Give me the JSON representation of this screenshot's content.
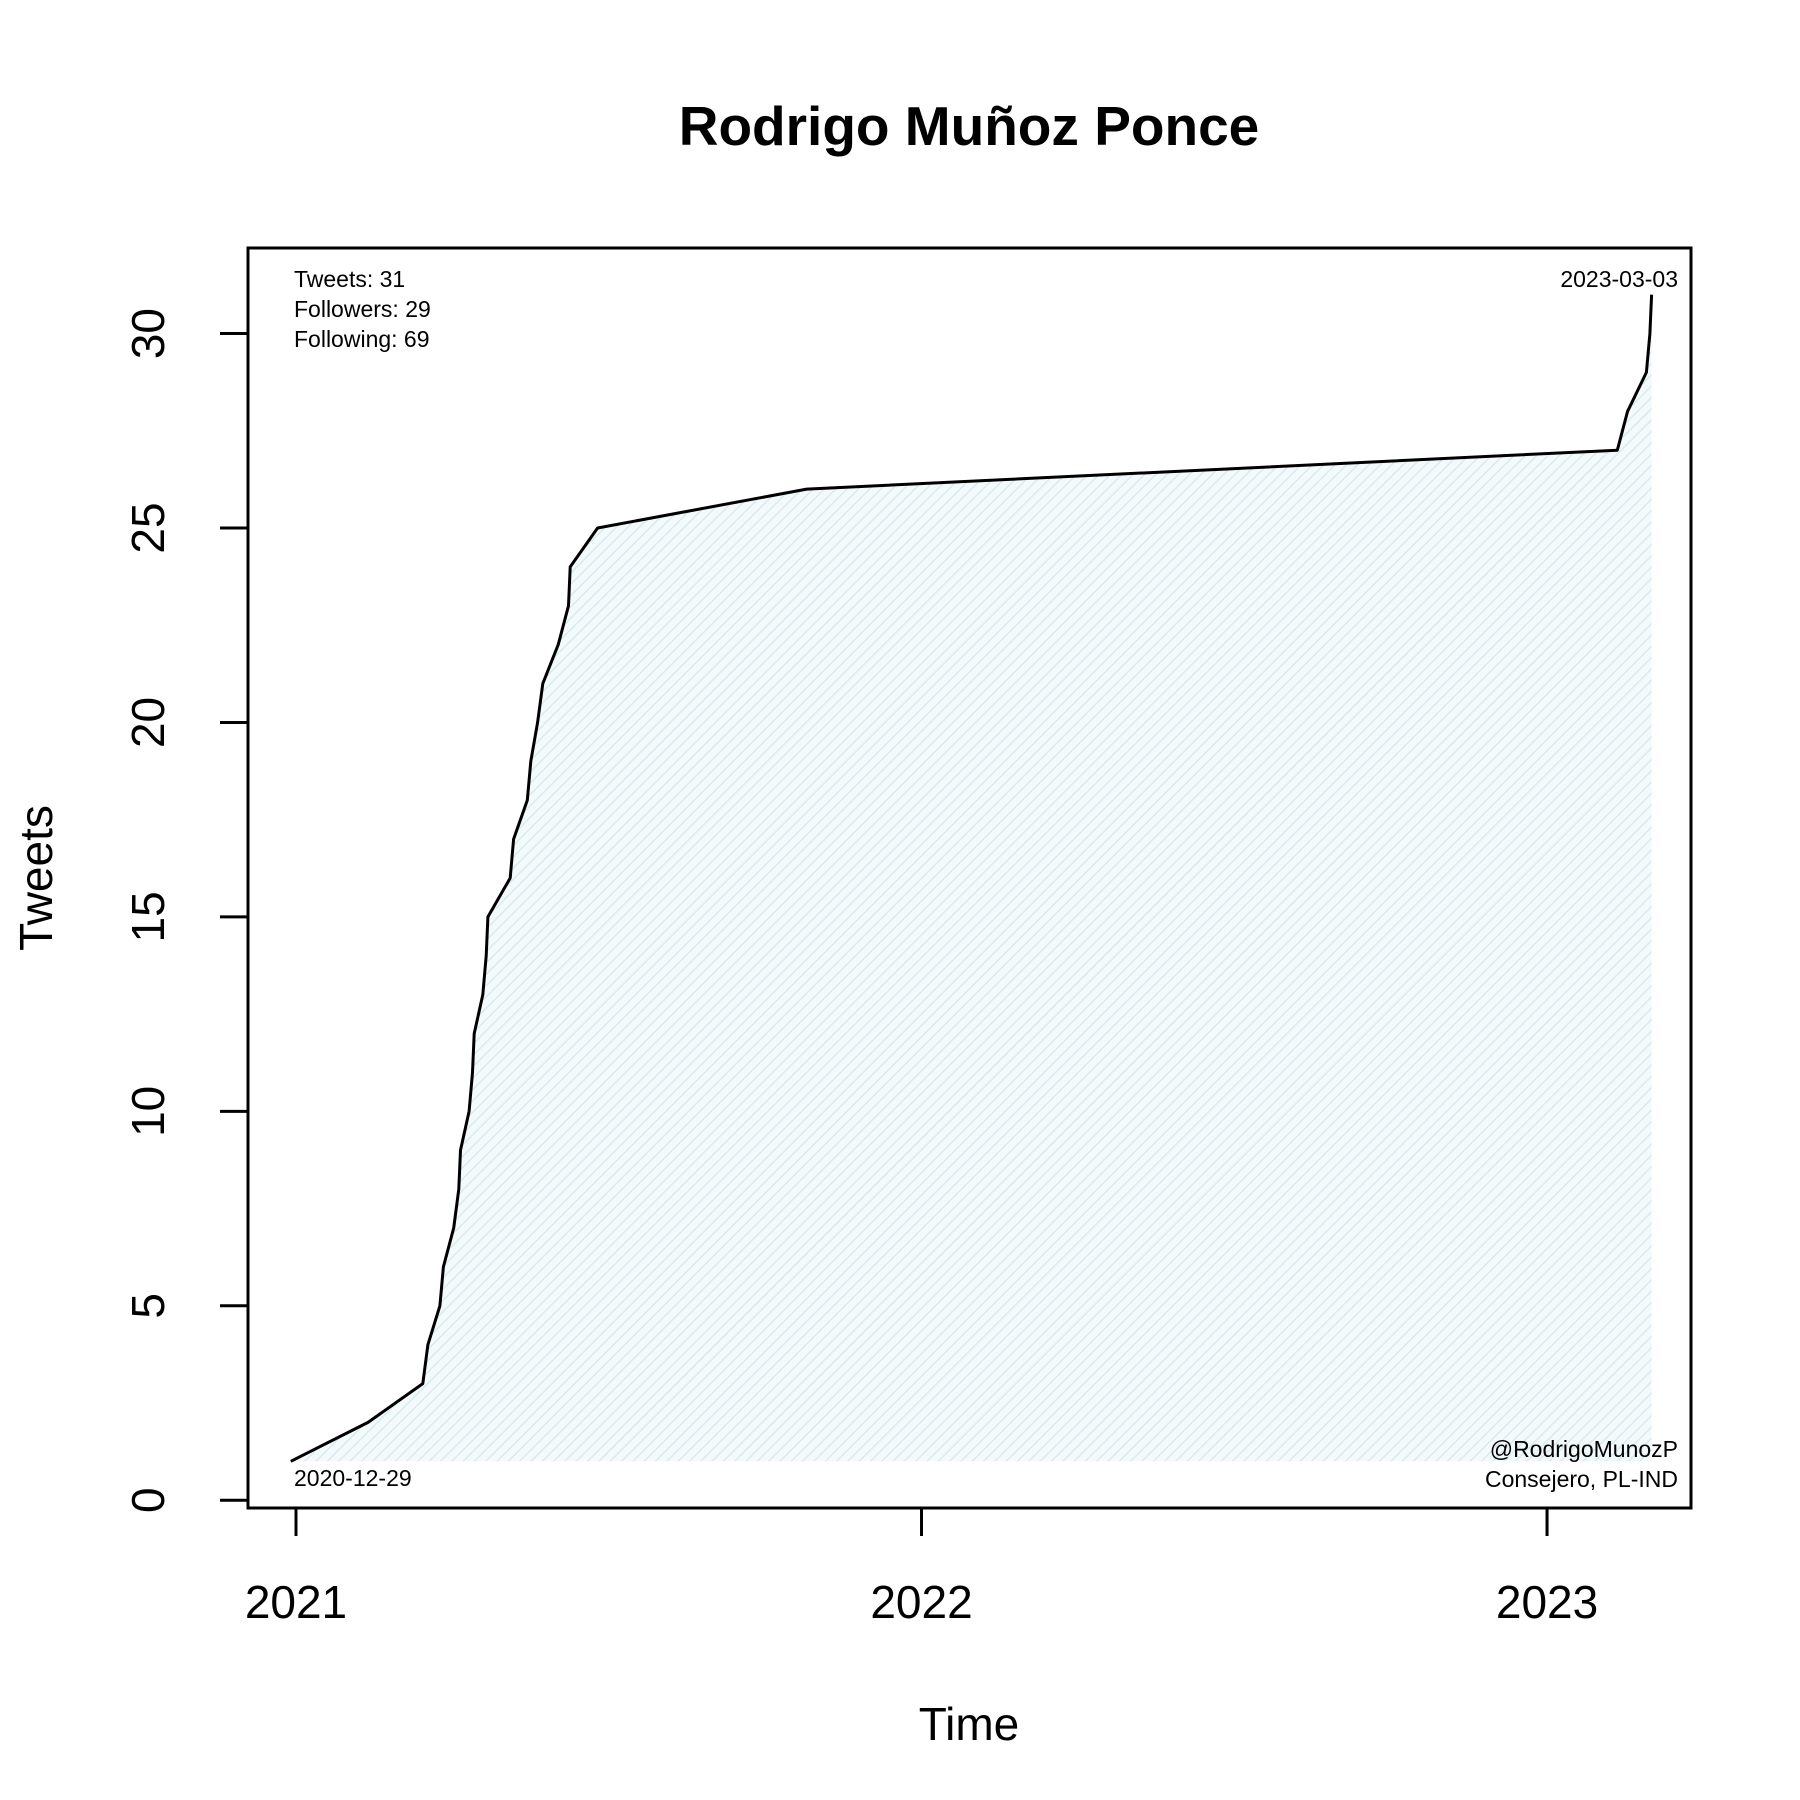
{
  "chart_data": {
    "type": "line",
    "title": "Rodrigo Muñoz Ponce",
    "xlabel": "Time",
    "ylabel": "Tweets",
    "xlim": [
      "2020-12-04",
      "2023-03-26"
    ],
    "ylim": [
      -0.2,
      32.2
    ],
    "x_ticks": [
      {
        "date": "2021-01-01",
        "label": "2021"
      },
      {
        "date": "2022-01-01",
        "label": "2022"
      },
      {
        "date": "2023-01-01",
        "label": "2023"
      }
    ],
    "y_ticks": [
      0,
      5,
      10,
      15,
      20,
      25,
      30
    ],
    "fill_color": "#e0f0f2",
    "line_color": "#000000",
    "stats": [
      "Tweets: 31",
      "Followers: 29",
      "Following: 69"
    ],
    "start_label": "2020-12-29",
    "end_label": "2023-03-03",
    "account": [
      "@RodrigoMunozP",
      "Consejero, PL-IND"
    ],
    "points": [
      {
        "x": "2020-12-29",
        "y": 1
      },
      {
        "x": "2021-02-12",
        "y": 2
      },
      {
        "x": "2021-03-16",
        "y": 3
      },
      {
        "x": "2021-03-19",
        "y": 4
      },
      {
        "x": "2021-03-26",
        "y": 5
      },
      {
        "x": "2021-03-28",
        "y": 6
      },
      {
        "x": "2021-04-03",
        "y": 7
      },
      {
        "x": "2021-04-06",
        "y": 8
      },
      {
        "x": "2021-04-07",
        "y": 9
      },
      {
        "x": "2021-04-12",
        "y": 10
      },
      {
        "x": "2021-04-14",
        "y": 11
      },
      {
        "x": "2021-04-15",
        "y": 12
      },
      {
        "x": "2021-04-20",
        "y": 13
      },
      {
        "x": "2021-04-22",
        "y": 14
      },
      {
        "x": "2021-04-23",
        "y": 15
      },
      {
        "x": "2021-05-06",
        "y": 16
      },
      {
        "x": "2021-05-08",
        "y": 17
      },
      {
        "x": "2021-05-16",
        "y": 18
      },
      {
        "x": "2021-05-18",
        "y": 19
      },
      {
        "x": "2021-05-22",
        "y": 20
      },
      {
        "x": "2021-05-25",
        "y": 21
      },
      {
        "x": "2021-06-03",
        "y": 22
      },
      {
        "x": "2021-06-09",
        "y": 23
      },
      {
        "x": "2021-06-10",
        "y": 24
      },
      {
        "x": "2021-06-26",
        "y": 25
      },
      {
        "x": "2021-10-26",
        "y": 26
      },
      {
        "x": "2023-02-11",
        "y": 27
      },
      {
        "x": "2023-02-17",
        "y": 28
      },
      {
        "x": "2023-02-28",
        "y": 29
      },
      {
        "x": "2023-03-02",
        "y": 30
      },
      {
        "x": "2023-03-03",
        "y": 31
      }
    ]
  }
}
